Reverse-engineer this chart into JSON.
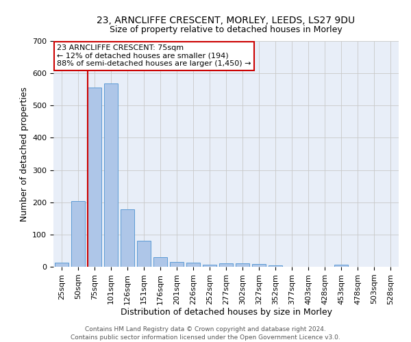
{
  "title1": "23, ARNCLIFFE CRESCENT, MORLEY, LEEDS, LS27 9DU",
  "title2": "Size of property relative to detached houses in Morley",
  "xlabel": "Distribution of detached houses by size in Morley",
  "ylabel": "Number of detached properties",
  "footer1": "Contains HM Land Registry data © Crown copyright and database right 2024.",
  "footer2": "Contains public sector information licensed under the Open Government Licence v3.0.",
  "annotation_line1": "23 ARNCLIFFE CRESCENT: 75sqm",
  "annotation_line2": "← 12% of detached houses are smaller (194)",
  "annotation_line3": "88% of semi-detached houses are larger (1,450) →",
  "bar_categories": [
    "25sqm",
    "50sqm",
    "75sqm",
    "101sqm",
    "126sqm",
    "151sqm",
    "176sqm",
    "201sqm",
    "226sqm",
    "252sqm",
    "277sqm",
    "302sqm",
    "327sqm",
    "352sqm",
    "377sqm",
    "403sqm",
    "428sqm",
    "453sqm",
    "478sqm",
    "503sqm",
    "528sqm"
  ],
  "bar_values": [
    12,
    204,
    556,
    568,
    178,
    80,
    30,
    14,
    12,
    6,
    10,
    10,
    8,
    5,
    0,
    0,
    0,
    6,
    0,
    0,
    0
  ],
  "bar_color": "#aec6e8",
  "bar_edge_color": "#5b9bd5",
  "vline_color": "#cc0000",
  "vline_bar_index": 2,
  "ylim": [
    0,
    700
  ],
  "yticks": [
    0,
    100,
    200,
    300,
    400,
    500,
    600,
    700
  ],
  "grid_color": "#c8c8c8",
  "bg_color": "#e8eef8",
  "annotation_box_facecolor": "#ffffff",
  "annotation_box_edgecolor": "#cc0000",
  "title1_fontsize": 10,
  "title2_fontsize": 9,
  "xlabel_fontsize": 9,
  "ylabel_fontsize": 9,
  "tick_fontsize": 8,
  "ann_fontsize": 8,
  "footer_fontsize": 6.5
}
